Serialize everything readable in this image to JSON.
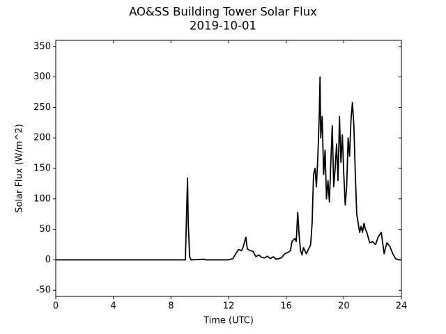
{
  "chart_data": {
    "type": "line",
    "title": "AO&SS Building Tower Solar Flux",
    "subtitle": "2019-10-01",
    "x_label": "Time (UTC)",
    "y_label": "Solar Flux (W/m^2)",
    "xlim": [
      0,
      24
    ],
    "xticks": [
      0,
      4,
      8,
      12,
      16,
      20,
      24
    ],
    "ylim": [
      -60,
      360
    ],
    "yticks": [
      -50,
      0,
      50,
      100,
      150,
      200,
      250,
      300,
      350
    ],
    "grid": false,
    "series": [
      {
        "color": "#000000",
        "x": [
          0,
          9.0,
          9.1,
          9.15,
          9.2,
          9.3,
          9.4,
          10.3,
          10.4,
          12.0,
          12.3,
          12.5,
          12.7,
          12.9,
          13.0,
          13.2,
          13.3,
          13.5,
          13.7,
          13.9,
          14.1,
          14.3,
          14.5,
          14.7,
          14.9,
          15.1,
          15.3,
          15.5,
          15.7,
          15.9,
          16.1,
          16.3,
          16.4,
          16.6,
          16.7,
          16.8,
          16.9,
          17.0,
          17.1,
          17.2,
          17.3,
          17.4,
          17.5,
          17.7,
          17.8,
          17.9,
          18.0,
          18.1,
          18.2,
          18.3,
          18.35,
          18.4,
          18.5,
          18.6,
          18.7,
          18.8,
          18.9,
          19.0,
          19.1,
          19.2,
          19.3,
          19.4,
          19.5,
          19.6,
          19.7,
          19.8,
          19.9,
          20.0,
          20.1,
          20.2,
          20.3,
          20.4,
          20.5,
          20.6,
          20.7,
          20.8,
          20.9,
          21.0,
          21.1,
          21.2,
          21.3,
          21.4,
          21.5,
          21.6,
          21.8,
          22.0,
          22.2,
          22.4,
          22.6,
          22.8,
          22.9,
          23.0,
          23.2,
          23.4,
          23.6,
          23.8,
          24
        ],
        "values": [
          0,
          0,
          90,
          134,
          60,
          5,
          0,
          1,
          0,
          0,
          2,
          10,
          17,
          15,
          20,
          37,
          18,
          15,
          14,
          5,
          8,
          4,
          3,
          6,
          2,
          5,
          1,
          2,
          4,
          10,
          12,
          15,
          30,
          35,
          30,
          78,
          40,
          15,
          8,
          20,
          15,
          10,
          15,
          25,
          60,
          140,
          150,
          120,
          170,
          240,
          300,
          200,
          235,
          140,
          180,
          100,
          130,
          95,
          160,
          220,
          120,
          150,
          190,
          130,
          235,
          160,
          205,
          140,
          90,
          120,
          200,
          170,
          230,
          258,
          220,
          140,
          75,
          60,
          45,
          55,
          45,
          60,
          50,
          45,
          28,
          30,
          25,
          38,
          45,
          10,
          20,
          28,
          22,
          10,
          2,
          0,
          0
        ]
      }
    ]
  }
}
